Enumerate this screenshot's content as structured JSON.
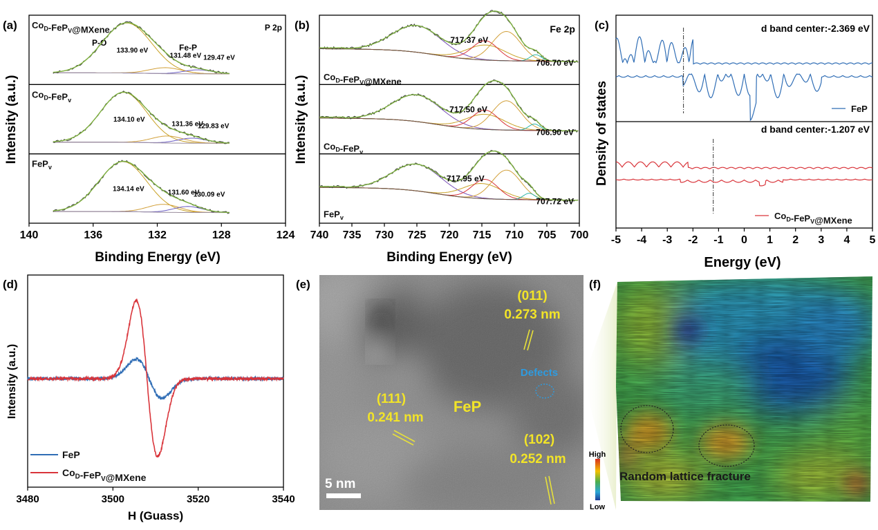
{
  "chart_data": [
    {
      "panel": "(a)",
      "type": "line",
      "xlabel": "Binding Energy (eV)",
      "ylabel": "Intensity (a.u.)",
      "xlim": [
        140,
        124
      ],
      "x_ticks": [
        "140",
        "136",
        "132",
        "128",
        "124"
      ],
      "corner_label": "P 2p",
      "subplots": [
        {
          "sample": {
            "main": "Co",
            "sub": "D",
            "mid": "-FeP",
            "sub2": "V",
            "tail": "@MXene"
          },
          "peaks": [
            {
              "label": "133.90 eV",
              "x": 133.9,
              "amp": 1.0,
              "width": 1.55
            },
            {
              "label": "131.48 eV",
              "x": 131.48,
              "amp": 0.12,
              "width": 1.0
            },
            {
              "label": "129.47 eV",
              "x": 129.47,
              "amp": 0.08,
              "width": 0.9
            }
          ],
          "annotations": [
            "P-O",
            "Fe-P"
          ]
        },
        {
          "sample": {
            "main": "Co",
            "sub": "D",
            "mid": "-FeP",
            "sub2": "v",
            "tail": ""
          },
          "peaks": [
            {
              "label": "134.10 eV",
              "x": 134.1,
              "amp": 1.0,
              "width": 1.45
            },
            {
              "label": "131.36 eV",
              "x": 131.36,
              "amp": 0.14,
              "width": 1.0
            },
            {
              "label": "129.83 eV",
              "x": 129.83,
              "amp": 0.1,
              "width": 0.9
            }
          ]
        },
        {
          "sample": {
            "main": "FeP",
            "sub": "",
            "mid": "",
            "sub2": "v",
            "tail": ""
          },
          "peaks": [
            {
              "label": "134.14 eV",
              "x": 134.14,
              "amp": 1.0,
              "width": 1.5
            },
            {
              "label": "131.60 eV",
              "x": 131.6,
              "amp": 0.16,
              "width": 1.0
            },
            {
              "label": "130.09 eV",
              "x": 130.09,
              "amp": 0.12,
              "width": 0.9
            }
          ]
        }
      ]
    },
    {
      "panel": "(b)",
      "type": "line",
      "xlabel": "Binding Energy (eV)",
      "ylabel": "Intensity (a.u.)",
      "xlim": [
        740,
        700
      ],
      "x_ticks": [
        "740",
        "735",
        "730",
        "725",
        "720",
        "715",
        "710",
        "705",
        "700"
      ],
      "corner_label": "Fe 2p",
      "subplots": [
        {
          "sample": {
            "main": "Co",
            "sub": "D",
            "mid": "-FeP",
            "sub2": "V",
            "tail": "@MXene"
          },
          "satellite_label": "717.37 eV",
          "satellite_x": 717.37,
          "metal_label": "706.70 eV",
          "metal_x": 706.7
        },
        {
          "sample": {
            "main": "Co",
            "sub": "D",
            "mid": "-FeP",
            "sub2": "v",
            "tail": ""
          },
          "satellite_label": "717.50 eV",
          "satellite_x": 717.5,
          "metal_label": "706.90 eV",
          "metal_x": 706.9
        },
        {
          "sample": {
            "main": "FeP",
            "sub": "",
            "mid": "",
            "sub2": "v",
            "tail": ""
          },
          "satellite_label": "717.95 eV",
          "satellite_x": 717.95,
          "metal_label": "707.72 eV",
          "metal_x": 707.72
        }
      ]
    },
    {
      "panel": "(c)",
      "type": "line",
      "xlabel": "Energy (eV)",
      "ylabel": "Density of states",
      "xlim": [
        -5,
        5
      ],
      "x_ticks": [
        "-5",
        "-4",
        "-3",
        "-2",
        "-1",
        "0",
        "1",
        "2",
        "3",
        "4",
        "5"
      ],
      "subplots": [
        {
          "d_band_label": "d band center:-2.369 eV",
          "d_band_center": -2.369,
          "legend": {
            "main": "FeP",
            "sub": "",
            "mid": "",
            "sub2": "",
            "tail": ""
          },
          "color": "#2f6db5"
        },
        {
          "d_band_label": "d band center:-1.207 eV",
          "d_band_center": -1.207,
          "legend": {
            "main": "Co",
            "sub": "D",
            "mid": "-FeP",
            "sub2": "V",
            "tail": "@MXene"
          },
          "color": "#d9343a"
        }
      ]
    },
    {
      "panel": "(d)",
      "type": "line",
      "xlabel": "H (Guass)",
      "ylabel": "Intensity (a.u.)",
      "xlim": [
        3480,
        3540
      ],
      "x_ticks": [
        "3480",
        "3500",
        "3520",
        "3540"
      ],
      "series": [
        {
          "name": "FeP",
          "color": "#2f6db5",
          "pos_peak": 3505.5,
          "neg_peak": 3511.5,
          "amplitude": 0.25
        },
        {
          "name": "Co_D-FeP_V@MXene",
          "color": "#d9343a",
          "pos_peak": 3505.5,
          "neg_peak": 3510.5,
          "amplitude": 1.0
        }
      ],
      "legend_labels": [
        {
          "main": "FeP",
          "sub": "",
          "mid": "",
          "sub2": "",
          "tail": ""
        },
        {
          "main": "Co",
          "sub": "D",
          "mid": "-FeP",
          "sub2": "V",
          "tail": "@MXene"
        }
      ]
    }
  ],
  "panel_e": {
    "label": "(e)",
    "annotations": [
      {
        "hkl": "(011)",
        "d": "0.273 nm"
      },
      {
        "hkl": "(111)",
        "d": "0.241 nm"
      },
      {
        "hkl": "(102)",
        "d": "0.252 nm"
      }
    ],
    "phase": "FeP",
    "defects": "Defects",
    "scale": "5 nm"
  },
  "panel_f": {
    "label": "(f)",
    "colorbar_high": "High",
    "colorbar_low": "Low",
    "caption": "Random lattice fracture"
  }
}
